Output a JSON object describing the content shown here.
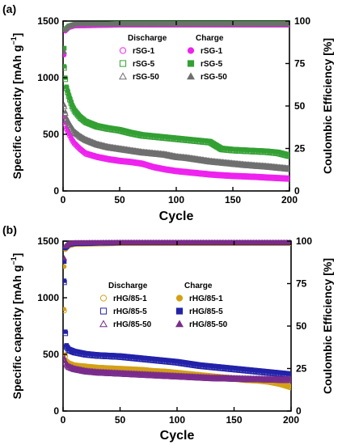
{
  "chart_data": [
    {
      "panel_label": "(a)",
      "type": "scatter",
      "xlabel": "Cycle",
      "ylabel": "Specific capacity [mAh g",
      "ylabel_sup": "−1",
      "ylabel_close": "]",
      "y2label": "Coulombic Efficiency [%]",
      "xlim": [
        0,
        200
      ],
      "ylim": [
        0,
        1500
      ],
      "y2lim": [
        0,
        100
      ],
      "xticks": [
        "0",
        "50",
        "100",
        "150",
        "200"
      ],
      "yticks": [
        "0",
        "500",
        "1000",
        "1500"
      ],
      "y2ticks": [
        "0",
        "25",
        "50",
        "75",
        "100"
      ],
      "legend": {
        "placement": "top-center",
        "discharge_title": "Discharge",
        "charge_title": "Charge",
        "discharge_labels": [
          "rSG-1",
          "rSG-5",
          "rSG-50"
        ],
        "charge_labels": [
          "rSG-1",
          "rSG-5",
          "rSG-50"
        ]
      },
      "series": [
        {
          "name": "rSG-1",
          "color": "#ee22ee",
          "marker": "circle",
          "capacity": [
            [
              1,
              650
            ],
            [
              2,
              600
            ],
            [
              3,
              560
            ],
            [
              5,
              520
            ],
            [
              8,
              460
            ],
            [
              10,
              430
            ],
            [
              15,
              380
            ],
            [
              20,
              340
            ],
            [
              30,
              310
            ],
            [
              40,
              290
            ],
            [
              50,
              275
            ],
            [
              60,
              265
            ],
            [
              70,
              250
            ],
            [
              80,
              220
            ],
            [
              90,
              200
            ],
            [
              100,
              185
            ],
            [
              110,
              175
            ],
            [
              120,
              165
            ],
            [
              130,
              155
            ],
            [
              140,
              148
            ],
            [
              150,
              142
            ],
            [
              160,
              138
            ],
            [
              170,
              134
            ],
            [
              180,
              128
            ],
            [
              190,
              123
            ],
            [
              200,
              118
            ]
          ],
          "efficiency": [
            [
              1,
              80
            ],
            [
              2,
              94
            ],
            [
              5,
              96
            ],
            [
              10,
              97
            ],
            [
              50,
              97.5
            ],
            [
              100,
              97.5
            ],
            [
              150,
              97.5
            ],
            [
              200,
              97.5
            ]
          ]
        },
        {
          "name": "rSG-5",
          "color": "#33a033",
          "marker": "square",
          "capacity": [
            [
              1,
              1100
            ],
            [
              2,
              1000
            ],
            [
              3,
              920
            ],
            [
              5,
              850
            ],
            [
              8,
              760
            ],
            [
              10,
              720
            ],
            [
              15,
              660
            ],
            [
              20,
              620
            ],
            [
              30,
              580
            ],
            [
              40,
              560
            ],
            [
              50,
              545
            ],
            [
              60,
              520
            ],
            [
              70,
              500
            ],
            [
              80,
              490
            ],
            [
              90,
              480
            ],
            [
              100,
              470
            ],
            [
              110,
              460
            ],
            [
              120,
              450
            ],
            [
              130,
              440
            ],
            [
              140,
              380
            ],
            [
              150,
              370
            ],
            [
              160,
              365
            ],
            [
              170,
              360
            ],
            [
              180,
              355
            ],
            [
              190,
              345
            ],
            [
              200,
              320
            ]
          ],
          "efficiency": [
            [
              1,
              84
            ],
            [
              2,
              95
            ],
            [
              5,
              97
            ],
            [
              10,
              98
            ],
            [
              50,
              98.5
            ],
            [
              100,
              98.5
            ],
            [
              150,
              98.5
            ],
            [
              200,
              98.5
            ]
          ]
        },
        {
          "name": "rSG-50",
          "color": "#6f6f6f",
          "marker": "triangle",
          "capacity": [
            [
              1,
              760
            ],
            [
              2,
              700
            ],
            [
              3,
              650
            ],
            [
              5,
              610
            ],
            [
              8,
              560
            ],
            [
              10,
              530
            ],
            [
              15,
              490
            ],
            [
              20,
              460
            ],
            [
              30,
              420
            ],
            [
              40,
              395
            ],
            [
              50,
              380
            ],
            [
              60,
              365
            ],
            [
              70,
              350
            ],
            [
              80,
              340
            ],
            [
              90,
              330
            ],
            [
              100,
              310
            ],
            [
              110,
              300
            ],
            [
              120,
              285
            ],
            [
              130,
              270
            ],
            [
              140,
              260
            ],
            [
              150,
              250
            ],
            [
              160,
              240
            ],
            [
              170,
              232
            ],
            [
              180,
              225
            ],
            [
              190,
              215
            ],
            [
              200,
              205
            ]
          ],
          "efficiency": [
            [
              1,
              82
            ],
            [
              2,
              95
            ],
            [
              5,
              97
            ],
            [
              10,
              98
            ],
            [
              50,
              98
            ],
            [
              100,
              98
            ],
            [
              150,
              98
            ],
            [
              200,
              98
            ]
          ]
        }
      ]
    },
    {
      "panel_label": "(b)",
      "type": "scatter",
      "xlabel": "Cycle",
      "ylabel": "Specific capacity [mAh g",
      "ylabel_sup": "−1",
      "ylabel_close": "]",
      "y2label": "Coulombic Efficiency [%]",
      "xlim": [
        0,
        200
      ],
      "ylim": [
        0,
        1500
      ],
      "y2lim": [
        0,
        100
      ],
      "xticks": [
        "0",
        "50",
        "100",
        "150",
        "200"
      ],
      "yticks": [
        "0",
        "500",
        "1000",
        "1500"
      ],
      "y2ticks": [
        "0",
        "25",
        "50",
        "75",
        "100"
      ],
      "legend": {
        "placement": "top-center",
        "discharge_title": "Discharge",
        "charge_title": "Charge",
        "discharge_labels": [
          "rHG/85-1",
          "rHG/85-5",
          "rHG/85-50"
        ],
        "charge_labels": [
          "rHG/85-1",
          "rHG/85-5",
          "rHG/85-50"
        ]
      },
      "series": [
        {
          "name": "rHG/85-1",
          "color": "#d4a017",
          "marker": "circle",
          "capacity": [
            [
              1,
              900
            ],
            [
              2,
              500
            ],
            [
              3,
              450
            ],
            [
              5,
              430
            ],
            [
              10,
              410
            ],
            [
              20,
              400
            ],
            [
              30,
              390
            ],
            [
              40,
              385
            ],
            [
              50,
              380
            ],
            [
              60,
              375
            ],
            [
              70,
              370
            ],
            [
              80,
              360
            ],
            [
              90,
              355
            ],
            [
              100,
              345
            ],
            [
              110,
              335
            ],
            [
              120,
              325
            ],
            [
              130,
              315
            ],
            [
              140,
              305
            ],
            [
              150,
              295
            ],
            [
              160,
              285
            ],
            [
              170,
              280
            ],
            [
              180,
              270
            ],
            [
              190,
              250
            ],
            [
              200,
              220
            ]
          ],
          "efficiency": [
            [
              1,
              85
            ],
            [
              2,
              95
            ],
            [
              5,
              97
            ],
            [
              10,
              98
            ],
            [
              50,
              98.5
            ],
            [
              100,
              98.5
            ],
            [
              150,
              98.5
            ],
            [
              200,
              98.5
            ]
          ]
        },
        {
          "name": "rHG/85-5",
          "color": "#2222aa",
          "marker": "square",
          "capacity": [
            [
              1,
              1150
            ],
            [
              2,
              700
            ],
            [
              3,
              580
            ],
            [
              5,
              550
            ],
            [
              10,
              530
            ],
            [
              20,
              510
            ],
            [
              30,
              500
            ],
            [
              40,
              495
            ],
            [
              50,
              490
            ],
            [
              60,
              480
            ],
            [
              70,
              470
            ],
            [
              80,
              460
            ],
            [
              90,
              450
            ],
            [
              100,
              440
            ],
            [
              110,
              425
            ],
            [
              120,
              410
            ],
            [
              130,
              400
            ],
            [
              140,
              390
            ],
            [
              150,
              380
            ],
            [
              160,
              370
            ],
            [
              170,
              360
            ],
            [
              180,
              350
            ],
            [
              190,
              340
            ],
            [
              200,
              330
            ]
          ],
          "efficiency": [
            [
              1,
              88
            ],
            [
              2,
              96
            ],
            [
              5,
              98
            ],
            [
              10,
              98.5
            ],
            [
              50,
              99
            ],
            [
              100,
              99
            ],
            [
              150,
              99
            ],
            [
              200,
              99
            ]
          ]
        },
        {
          "name": "rHG/85-50",
          "color": "#7a2c8c",
          "marker": "triangle",
          "capacity": [
            [
              1,
              470
            ],
            [
              2,
              440
            ],
            [
              3,
              420
            ],
            [
              5,
              400
            ],
            [
              10,
              380
            ],
            [
              20,
              360
            ],
            [
              30,
              350
            ],
            [
              40,
              345
            ],
            [
              50,
              340
            ],
            [
              60,
              335
            ],
            [
              70,
              330
            ],
            [
              80,
              325
            ],
            [
              90,
              320
            ],
            [
              100,
              315
            ],
            [
              110,
              310
            ],
            [
              120,
              305
            ],
            [
              130,
              300
            ],
            [
              140,
              298
            ],
            [
              150,
              295
            ],
            [
              160,
              292
            ],
            [
              170,
              290
            ],
            [
              180,
              288
            ],
            [
              190,
              285
            ],
            [
              200,
              283
            ]
          ],
          "efficiency": [
            [
              1,
              90
            ],
            [
              2,
              97
            ],
            [
              5,
              98.5
            ],
            [
              10,
              99
            ],
            [
              50,
              99.2
            ],
            [
              100,
              99.2
            ],
            [
              150,
              99.2
            ],
            [
              200,
              99.2
            ]
          ]
        }
      ]
    }
  ]
}
